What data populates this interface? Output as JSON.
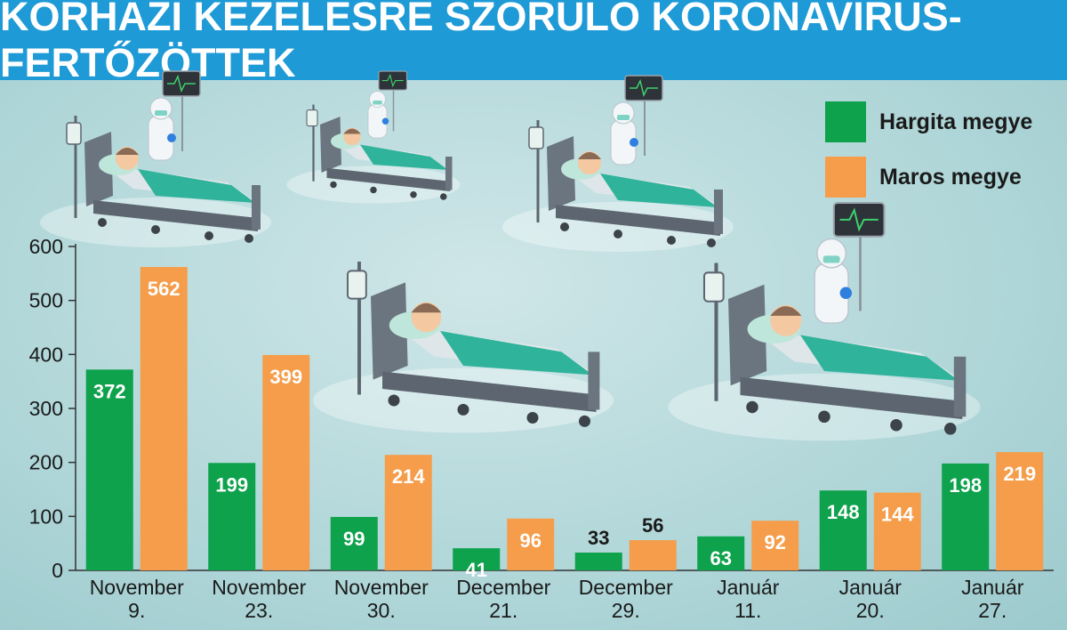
{
  "title": "KÓRHÁZI KEZELÉSRE SZORULÓ KORONAVÍRUS-FERTŐZÖTTEK",
  "colors": {
    "header_bg": "#1e9ad6",
    "hargita": "#0da24b",
    "maros": "#f59d4a",
    "bed_sheet": "#2fb39a",
    "bed_frame": "#5d6670"
  },
  "legend": [
    {
      "label": "Hargita megye",
      "color": "#0da24b"
    },
    {
      "label": "Maros megye",
      "color": "#f59d4a"
    }
  ],
  "illustrations": [
    {
      "name": "hospital-bed-nurse-icon"
    },
    {
      "name": "hospital-bed-nurse-icon"
    },
    {
      "name": "hospital-bed-nurse-icon"
    },
    {
      "name": "hospital-bed-patient-icon"
    },
    {
      "name": "hospital-bed-nurse-icon"
    }
  ],
  "chart_data": {
    "type": "bar",
    "title": "KÓRHÁZI KEZELÉSRE SZORULÓ KORONAVÍRUS-FERTŐZÖTTEK",
    "categories": [
      [
        "November",
        "9."
      ],
      [
        "November",
        "23."
      ],
      [
        "November",
        "30."
      ],
      [
        "December",
        "21."
      ],
      [
        "December",
        "29."
      ],
      [
        "Január",
        "11."
      ],
      [
        "Január",
        "20."
      ],
      [
        "Január",
        "27."
      ]
    ],
    "series": [
      {
        "name": "Hargita megye",
        "color": "#0da24b",
        "values": [
          372,
          199,
          99,
          41,
          33,
          63,
          148,
          198
        ]
      },
      {
        "name": "Maros megye",
        "color": "#f59d4a",
        "values": [
          562,
          399,
          214,
          96,
          56,
          92,
          144,
          219
        ]
      }
    ],
    "ylim": [
      0,
      600
    ],
    "yticks": [
      0,
      100,
      200,
      300,
      400,
      500,
      600
    ],
    "label_position": [
      "inside",
      "inside",
      "inside",
      "inside",
      "above",
      "inside",
      "inside",
      "inside"
    ],
    "grid": false,
    "legend_position": "top-right"
  }
}
